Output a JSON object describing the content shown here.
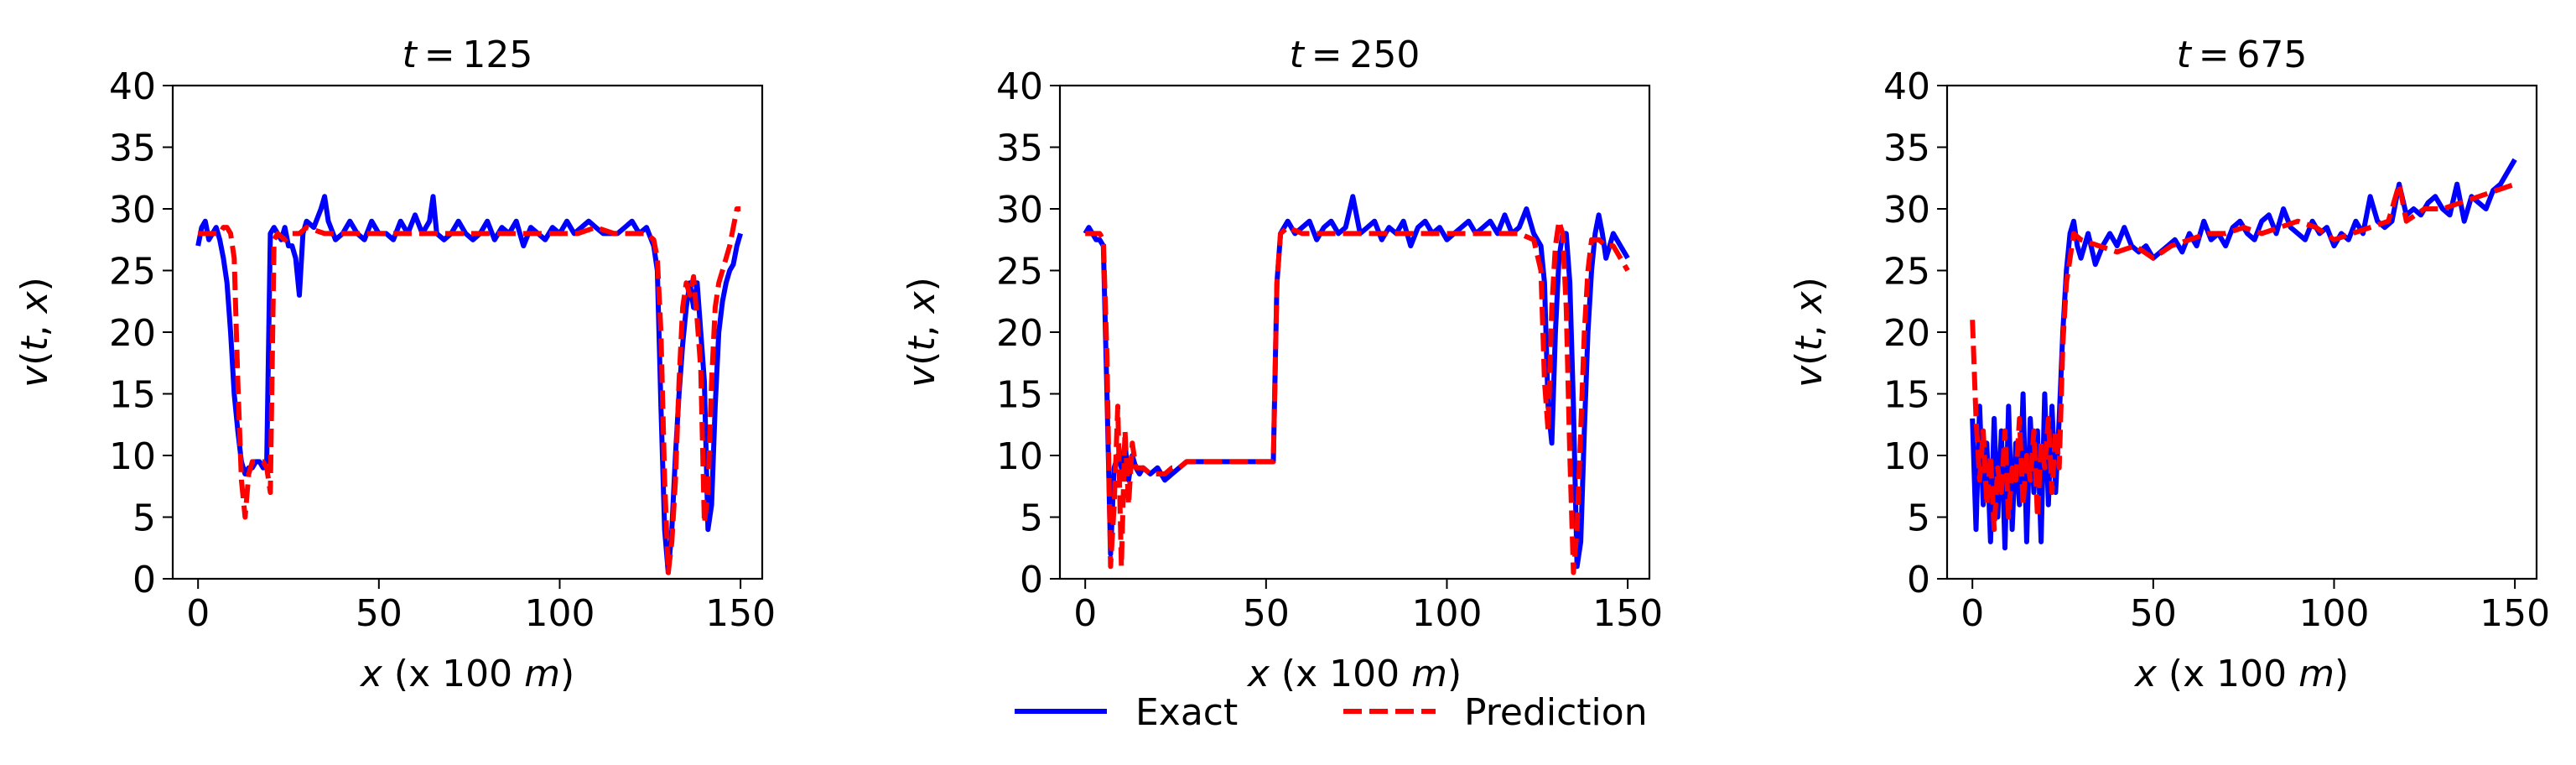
{
  "legend": {
    "placement": "bottom-center",
    "entries": [
      {
        "label": "Exact",
        "color": "#0000ff",
        "style": "solid"
      },
      {
        "label": "Prediction",
        "color": "#ff0000",
        "style": "dashed"
      }
    ]
  },
  "chart_data": [
    {
      "type": "line",
      "title": "t = 125",
      "title_italic": "t",
      "title_value": "125",
      "xlabel": "x (x 100 m)",
      "ylabel": "v(t, x)",
      "xlim": [
        -7,
        156
      ],
      "ylim": [
        0,
        40
      ],
      "xticks": [
        0,
        50,
        100,
        150
      ],
      "yticks": [
        0,
        5,
        10,
        15,
        20,
        25,
        30,
        35,
        40
      ],
      "grid": false,
      "series": [
        {
          "name": "Exact",
          "color": "#0000ff",
          "style": "solid",
          "x": [
            0,
            1,
            2,
            3,
            4,
            5,
            6,
            7,
            8,
            9,
            10,
            11,
            12,
            13,
            14,
            15,
            16,
            17,
            18,
            19,
            20,
            21,
            22,
            23,
            24,
            25,
            26,
            27,
            28,
            29,
            30,
            32,
            34,
            35,
            36,
            38,
            40,
            42,
            44,
            46,
            48,
            50,
            52,
            54,
            56,
            58,
            60,
            62,
            64,
            65,
            66,
            68,
            70,
            72,
            74,
            76,
            78,
            80,
            82,
            84,
            86,
            88,
            90,
            92,
            94,
            96,
            98,
            100,
            102,
            104,
            106,
            108,
            110,
            112,
            114,
            116,
            118,
            120,
            122,
            124,
            126,
            127,
            128,
            129,
            130,
            131,
            132,
            133,
            134,
            135,
            136,
            137,
            138,
            139,
            140,
            141,
            142,
            143,
            144,
            145,
            146,
            147,
            148,
            149,
            150
          ],
          "y": [
            27,
            28.5,
            29,
            27.5,
            28,
            28.5,
            27.5,
            26,
            24,
            20,
            15,
            12,
            9.5,
            8.5,
            9,
            9,
            9.5,
            9.5,
            9,
            9.5,
            28,
            28.5,
            28,
            27.5,
            28.5,
            27,
            27,
            26,
            23,
            28,
            29,
            28.5,
            30,
            31,
            29,
            27.5,
            28,
            29,
            28,
            27.5,
            29,
            28,
            28,
            27.5,
            29,
            28,
            29.5,
            28,
            29,
            31,
            28,
            27.5,
            28,
            29,
            28,
            27.5,
            28,
            29,
            27.5,
            28.5,
            28,
            29,
            27,
            28.5,
            28,
            27.5,
            28.5,
            28,
            29,
            28,
            28.5,
            29,
            28.5,
            28,
            28,
            28,
            28.5,
            29,
            28,
            28.5,
            27,
            25,
            14,
            4,
            0.5,
            4,
            10,
            15,
            19,
            22,
            24,
            22,
            24,
            20,
            16,
            4,
            6,
            14,
            20,
            22.5,
            24,
            25,
            25.5,
            27,
            28
          ]
        },
        {
          "name": "Prediction",
          "color": "#ff0000",
          "style": "dashed",
          "x": [
            0,
            2,
            4,
            6,
            7,
            8,
            9,
            10,
            11,
            12,
            13,
            14,
            15,
            16,
            17,
            18,
            19,
            20,
            21,
            22,
            24,
            26,
            28,
            30,
            35,
            40,
            45,
            50,
            55,
            60,
            65,
            70,
            75,
            80,
            85,
            90,
            95,
            100,
            105,
            110,
            115,
            120,
            124,
            126,
            127,
            128,
            129,
            130,
            131,
            132,
            133,
            134,
            135,
            136,
            137,
            138,
            139,
            140,
            141,
            142,
            143,
            144,
            145,
            146,
            147,
            148,
            149,
            150
          ],
          "y": [
            28,
            28,
            28,
            28,
            28.5,
            28.5,
            28,
            26,
            16,
            8,
            5,
            8.5,
            9.5,
            9.5,
            9.5,
            9.5,
            9,
            7,
            27.5,
            28,
            27.5,
            28,
            28,
            28.5,
            28,
            28,
            28,
            28,
            28,
            28,
            28,
            28,
            28,
            28,
            28,
            28,
            28,
            28,
            28,
            28.5,
            28,
            28,
            28,
            27.5,
            26,
            20,
            8,
            0.5,
            3,
            8,
            16,
            22,
            24,
            23,
            24.5,
            21,
            17,
            4.5,
            7,
            16,
            22,
            24,
            25,
            26,
            27,
            28.5,
            30,
            30
          ]
        }
      ]
    },
    {
      "type": "line",
      "title": "t = 250",
      "title_italic": "t",
      "title_value": "250",
      "xlabel": "x (x 100 m)",
      "ylabel": "v(t, x)",
      "xlim": [
        -7,
        156
      ],
      "ylim": [
        0,
        40
      ],
      "xticks": [
        0,
        50,
        100,
        150
      ],
      "yticks": [
        0,
        5,
        10,
        15,
        20,
        25,
        30,
        35,
        40
      ],
      "grid": false,
      "series": [
        {
          "name": "Exact",
          "color": "#0000ff",
          "style": "solid",
          "x": [
            0,
            1,
            2,
            3,
            4,
            5,
            6,
            7,
            8,
            9,
            10,
            11,
            12,
            13,
            14,
            15,
            16,
            18,
            20,
            22,
            24,
            26,
            28,
            30,
            35,
            40,
            45,
            50,
            52,
            53,
            54,
            56,
            58,
            60,
            62,
            64,
            66,
            68,
            70,
            72,
            74,
            76,
            78,
            80,
            82,
            84,
            86,
            88,
            90,
            92,
            94,
            96,
            98,
            100,
            102,
            104,
            106,
            108,
            110,
            112,
            114,
            116,
            118,
            120,
            122,
            124,
            126,
            127,
            128,
            129,
            130,
            131,
            132,
            133,
            134,
            135,
            136,
            137,
            138,
            139,
            140,
            141,
            142,
            143,
            144,
            145,
            146,
            147,
            148,
            149,
            150
          ],
          "y": [
            28,
            28.5,
            28,
            27.5,
            27.5,
            27,
            15,
            2,
            9,
            10,
            9,
            11,
            8,
            10,
            9,
            8.5,
            9,
            8.5,
            9,
            8,
            8.5,
            9,
            9.5,
            9.5,
            9.5,
            9.5,
            9.5,
            9.5,
            9.5,
            24,
            28,
            29,
            28,
            28.5,
            29,
            27.5,
            28.5,
            29,
            28,
            28.5,
            31,
            28,
            28.5,
            29,
            27.5,
            28.5,
            28,
            29,
            27,
            28.5,
            29,
            28,
            28.5,
            27.5,
            28,
            28.5,
            29,
            28,
            28.5,
            29,
            28,
            29.5,
            28,
            28.5,
            30,
            28,
            27,
            24,
            14,
            11,
            20,
            26,
            28,
            28,
            24,
            14,
            1,
            3,
            12,
            20,
            25,
            28,
            29.5,
            28,
            26,
            27,
            28,
            27.5,
            27,
            26.5,
            26
          ]
        },
        {
          "name": "Prediction",
          "color": "#ff0000",
          "style": "dashed",
          "x": [
            0,
            2,
            4,
            5,
            6,
            7,
            8,
            9,
            10,
            11,
            12,
            13,
            14,
            15,
            16,
            18,
            20,
            22,
            24,
            26,
            28,
            30,
            35,
            40,
            45,
            50,
            52,
            53,
            54,
            56,
            60,
            65,
            70,
            75,
            80,
            85,
            90,
            95,
            100,
            105,
            110,
            115,
            120,
            124,
            126,
            127,
            128,
            129,
            130,
            131,
            132,
            133,
            134,
            135,
            136,
            137,
            138,
            139,
            140,
            142,
            144,
            146,
            148,
            150
          ],
          "y": [
            28,
            28,
            28,
            27.5,
            18,
            1,
            6,
            14,
            1,
            12,
            6,
            11,
            9,
            9,
            9,
            8.5,
            8.5,
            8.5,
            9,
            9,
            9.5,
            9.5,
            9.5,
            9.5,
            9.5,
            9.5,
            9.5,
            24,
            28,
            28.5,
            28,
            28,
            28,
            28,
            28,
            28,
            28,
            28,
            28,
            28,
            28,
            28,
            28,
            27.5,
            25,
            16,
            12,
            22,
            27,
            29,
            28,
            22,
            10,
            0.5,
            4,
            12,
            20,
            25,
            27.5,
            27.5,
            27,
            27,
            26,
            25
          ]
        }
      ]
    },
    {
      "type": "line",
      "title": "t = 675",
      "title_italic": "t",
      "title_value": "675",
      "xlabel": "x (x 100 m)",
      "ylabel": "v(t, x)",
      "xlim": [
        -7,
        156
      ],
      "ylim": [
        0,
        40
      ],
      "xticks": [
        0,
        50,
        100,
        150
      ],
      "yticks": [
        0,
        5,
        10,
        15,
        20,
        25,
        30,
        35,
        40
      ],
      "grid": false,
      "series": [
        {
          "name": "Exact",
          "color": "#0000ff",
          "style": "solid",
          "x": [
            0,
            1,
            2,
            3,
            4,
            5,
            6,
            7,
            8,
            9,
            10,
            11,
            12,
            13,
            14,
            15,
            16,
            17,
            18,
            19,
            20,
            21,
            22,
            23,
            24,
            25,
            26,
            27,
            28,
            29,
            30,
            32,
            34,
            36,
            38,
            40,
            42,
            44,
            46,
            48,
            50,
            52,
            54,
            56,
            58,
            60,
            62,
            64,
            66,
            68,
            70,
            72,
            74,
            76,
            78,
            80,
            82,
            84,
            86,
            88,
            90,
            92,
            94,
            96,
            98,
            100,
            102,
            104,
            106,
            108,
            110,
            112,
            114,
            116,
            118,
            120,
            122,
            124,
            126,
            128,
            130,
            132,
            134,
            136,
            138,
            140,
            142,
            144,
            146,
            148,
            150
          ],
          "y": [
            13,
            4,
            14,
            6,
            11,
            3,
            13,
            5,
            12,
            2.5,
            14,
            4,
            11,
            6,
            15,
            3,
            13,
            7,
            12,
            3,
            15,
            6,
            14,
            7,
            13,
            20,
            25,
            28,
            29,
            27,
            26,
            28,
            25.5,
            27,
            28,
            27,
            28.5,
            27,
            26.5,
            27,
            26,
            26.5,
            27,
            27.5,
            26.5,
            28,
            27,
            29,
            27.5,
            28,
            27,
            28.5,
            29,
            28,
            27.5,
            29,
            29.5,
            28,
            30,
            28.5,
            28,
            27.5,
            29,
            28,
            28.5,
            27,
            28,
            27.5,
            29,
            28,
            31,
            29,
            28.5,
            29,
            32,
            29.5,
            30,
            29.5,
            30.5,
            31,
            30,
            29.5,
            32,
            29,
            31,
            30.5,
            30,
            31.5,
            32,
            33,
            34
          ]
        },
        {
          "name": "Prediction",
          "color": "#ff0000",
          "style": "dashed",
          "x": [
            0,
            1,
            2,
            3,
            4,
            5,
            6,
            7,
            8,
            9,
            10,
            11,
            12,
            13,
            14,
            15,
            16,
            17,
            18,
            19,
            20,
            21,
            22,
            23,
            24,
            25,
            26,
            28,
            30,
            35,
            40,
            45,
            50,
            55,
            60,
            65,
            70,
            75,
            80,
            85,
            90,
            95,
            100,
            105,
            110,
            115,
            118,
            120,
            125,
            130,
            135,
            140,
            145,
            150
          ],
          "y": [
            21,
            13,
            8,
            12,
            6,
            10,
            4,
            9,
            7,
            12,
            5,
            9,
            8,
            13,
            6,
            10,
            8,
            12,
            5,
            11,
            9,
            13,
            7,
            12,
            9,
            19,
            24,
            28,
            27.5,
            27,
            26.5,
            27,
            26,
            27,
            27.5,
            28,
            28,
            28.5,
            28,
            28.5,
            29,
            28.5,
            27.5,
            28,
            28.5,
            29,
            32,
            29,
            30,
            30,
            30.5,
            31,
            31.5,
            32
          ]
        }
      ]
    }
  ]
}
